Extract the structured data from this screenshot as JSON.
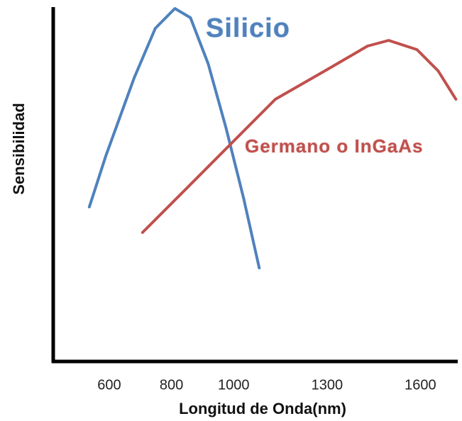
{
  "chart_data": {
    "type": "line",
    "xlabel": "Longitud de Onda(nm)",
    "ylabel": "Sensibilidad",
    "xlim": [
      420,
      1720
    ],
    "ylim": [
      0,
      100
    ],
    "xticks": [
      600,
      800,
      1000,
      1300,
      1600
    ],
    "series": [
      {
        "name": "Silicio",
        "color": "#4f81bd",
        "x": [
          536,
          589,
          680,
          748,
          811,
          861,
          918,
          975,
          1032,
          1082
        ],
        "values": [
          43.6,
          58,
          80,
          94,
          99.6,
          97,
          84,
          66,
          46,
          26.4
        ]
      },
      {
        "name": "Germano o InGaAs",
        "color": "#c0504d",
        "x": [
          707,
          839,
          975,
          1134,
          1293,
          1430,
          1498,
          1589,
          1657,
          1714
        ],
        "values": [
          36.4,
          48,
          60,
          74,
          82,
          89,
          90.6,
          88,
          82,
          74
        ]
      }
    ]
  }
}
